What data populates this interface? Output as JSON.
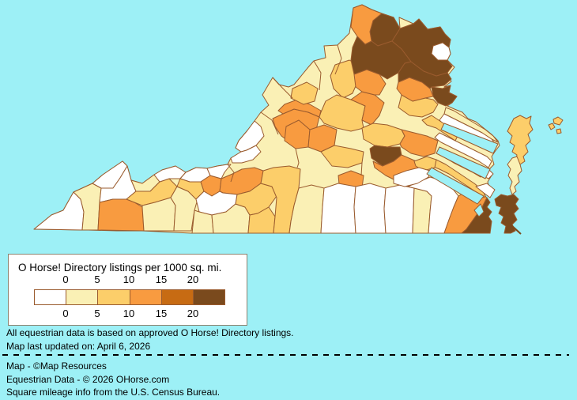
{
  "legend": {
    "title": "O Horse! Directory listings per 1000 sq. mi.",
    "tick_labels": [
      "0",
      "5",
      "10",
      "15",
      "20"
    ],
    "colors": [
      "#FFFFFF",
      "#FAF0B5",
      "#FCCE6A",
      "#F89B40",
      "#C76B13",
      "#7A4A1D"
    ],
    "box_border_color": "#8C8370"
  },
  "notes": {
    "line1": "All equestrian data is based on approved O Horse! Directory listings.",
    "line2": "Map last updated on: April 6, 2026"
  },
  "credits": {
    "line1": "Map - ©Map Resources",
    "line2": "Equestrian Data - © 2026 OHorse.com",
    "line3": "Square mileage info from the U.S. Census Bureau."
  },
  "map": {
    "region": "Virginia counties",
    "water_color": "#9DF0F6",
    "border_color": "#9A5B2E",
    "county_levels": [
      1,
      0,
      1,
      0,
      0,
      3,
      1,
      2,
      1,
      0,
      1,
      0,
      2,
      3,
      3,
      0,
      1,
      1,
      2,
      2,
      0,
      0,
      0,
      3,
      3,
      2,
      2,
      2,
      3,
      3,
      2,
      3,
      5,
      3,
      3,
      3,
      2,
      3,
      2,
      1,
      0,
      0,
      0,
      1,
      0,
      3,
      5,
      5,
      2,
      0,
      5,
      0,
      1,
      0,
      0,
      2,
      2,
      2,
      5,
      3,
      5,
      5,
      0,
      5,
      5,
      3,
      0,
      2,
      1,
      2,
      2,
      2
    ]
  }
}
